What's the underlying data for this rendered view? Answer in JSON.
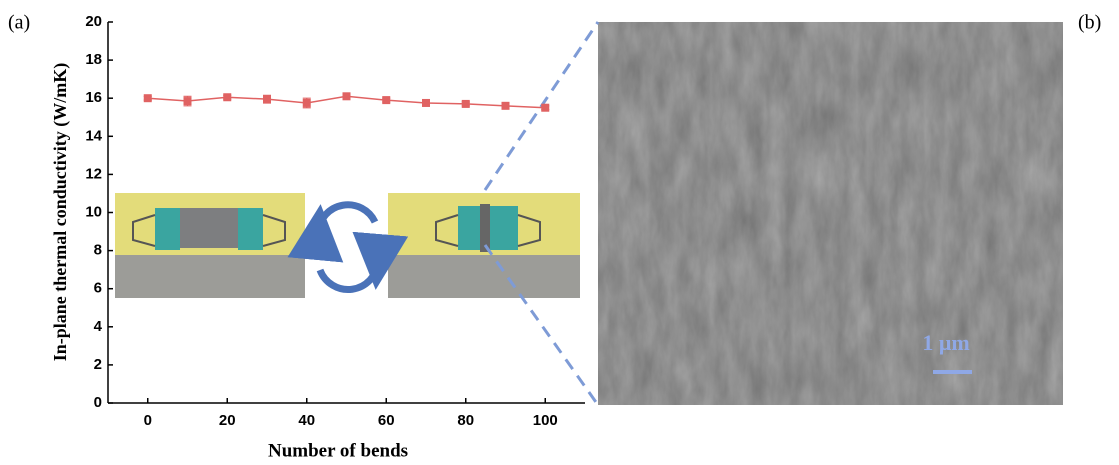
{
  "chart_data": {
    "type": "line",
    "xlabel": "Number of bends",
    "ylabel": "In-plane thermal conductivity (W/mK)",
    "x": [
      0,
      10,
      20,
      30,
      40,
      50,
      60,
      70,
      80,
      90,
      100
    ],
    "series": [
      {
        "color": "#e06262",
        "values": [
          16.0,
          15.85,
          16.05,
          15.95,
          15.75,
          16.1,
          15.9,
          15.75,
          15.7,
          15.6,
          15.5
        ],
        "errors": [
          0.1,
          0.25,
          0.1,
          0.2,
          0.25,
          0.15,
          0.1,
          0.1,
          0.1,
          0.1,
          0.1
        ]
      }
    ],
    "xlim": [
      -10,
      110
    ],
    "ylim": [
      0,
      20
    ],
    "xticks": [
      0,
      20,
      40,
      60,
      80,
      100
    ],
    "yticks": [
      0,
      2,
      4,
      6,
      8,
      10,
      12,
      14,
      16,
      18,
      20
    ]
  },
  "panel_labels": [
    "(a)",
    "(b)"
  ],
  "sem_image": {
    "scale_bar": "1 μm"
  }
}
